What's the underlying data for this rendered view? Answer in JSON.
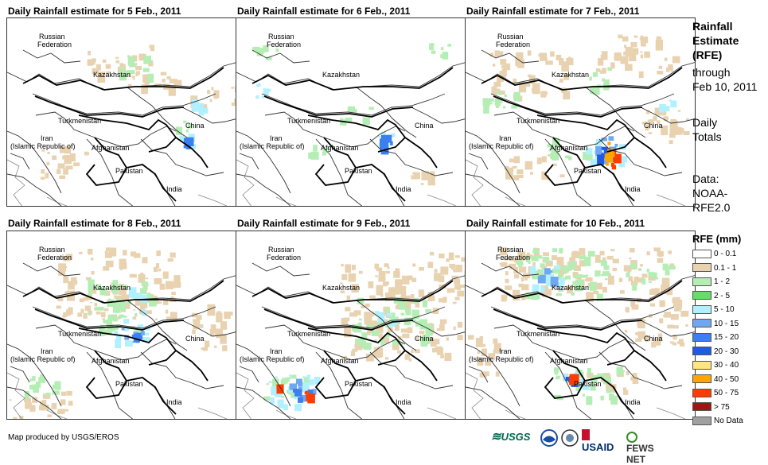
{
  "panels": [
    {
      "title": "Daily Rainfall estimate for 5 Feb., 2011",
      "variant": 0
    },
    {
      "title": "Daily Rainfall estimate for 6 Feb., 2011",
      "variant": 1
    },
    {
      "title": "Daily Rainfall estimate for 7 Feb., 2011",
      "variant": 2
    },
    {
      "title": "Daily Rainfall estimate for 8 Feb., 2011",
      "variant": 3
    },
    {
      "title": "Daily Rainfall estimate for 9 Feb., 2011",
      "variant": 4
    },
    {
      "title": "Daily Rainfall estimate for 10 Feb., 2011",
      "variant": 5
    }
  ],
  "map_labels": {
    "russia_1": "Russian",
    "russia_2": "Federation",
    "kazakhstan": "Kazakhstan",
    "turkmenistan": "Turkmenistan",
    "iran_1": "Iran",
    "iran_2": "(Islamic Republic of)",
    "afghanistan": "Afghanistan",
    "pakistan": "Pakistan",
    "china": "China",
    "india": "India"
  },
  "side": {
    "heading_1": "Rainfall",
    "heading_2": "Estimate",
    "heading_3": "(RFE)",
    "through_1": "through",
    "through_2": "Feb 10, 2011",
    "daily_1": "Daily",
    "daily_2": "Totals",
    "data_1": "Data:",
    "data_2": "NOAA-",
    "data_3": "RFE2.0"
  },
  "legend": {
    "title": "RFE (mm)",
    "items": [
      {
        "label": "0 - 0.1",
        "color": "#ffffff"
      },
      {
        "label": "0.1 - 1",
        "color": "#e8d2b0"
      },
      {
        "label": "1 - 2",
        "color": "#b4eeb4"
      },
      {
        "label": "2 - 5",
        "color": "#66dd66"
      },
      {
        "label": "5 - 10",
        "color": "#b0f0ff"
      },
      {
        "label": "10 - 15",
        "color": "#6fa8f0"
      },
      {
        "label": "15 - 20",
        "color": "#3c7ff0"
      },
      {
        "label": "20 - 30",
        "color": "#1e5ae6"
      },
      {
        "label": "30 - 40",
        "color": "#ffe680"
      },
      {
        "label": "40 - 50",
        "color": "#ffa500"
      },
      {
        "label": "50 - 75",
        "color": "#ff3c00"
      },
      {
        "label": "> 75",
        "color": "#a01414"
      },
      {
        "label": "No Data",
        "color": "#a0a0a0"
      }
    ]
  },
  "credit": "Map produced by USGS/EROS",
  "logos": {
    "usgs": "USGS",
    "usaid": "USAID",
    "fews": "FEWS NET"
  }
}
